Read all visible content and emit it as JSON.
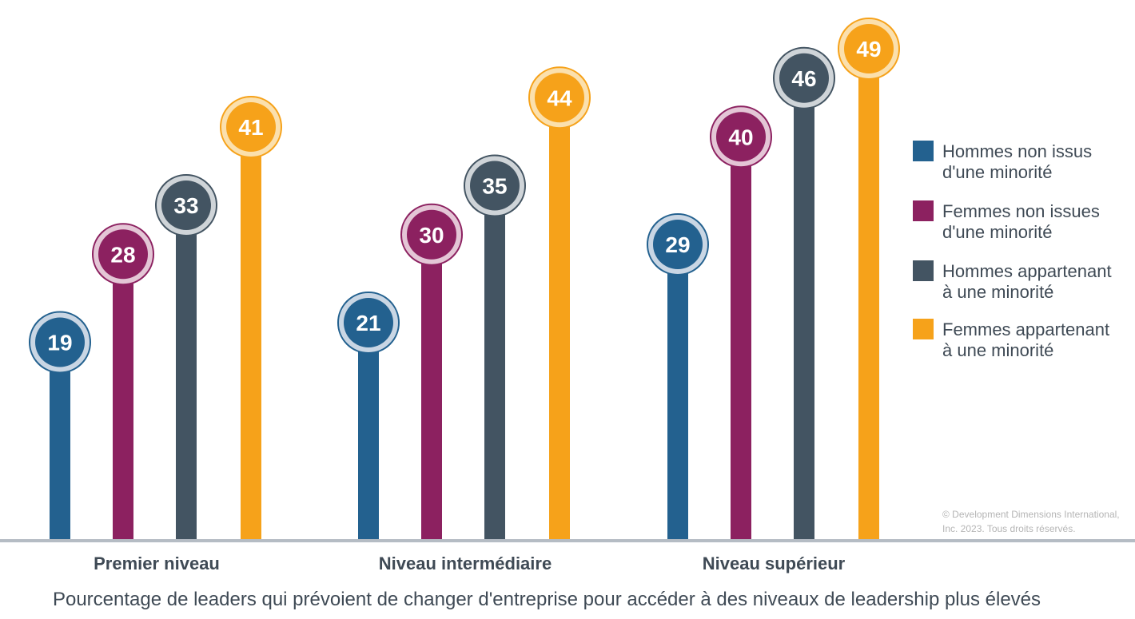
{
  "chart_data": {
    "type": "bar",
    "xlabel": "Pourcentage de leaders qui prévoient de changer d'entreprise pour accéder à des niveaux de leadership plus élevés",
    "categories": [
      "Premier niveau",
      "Niveau intermédiaire",
      "Niveau supérieur"
    ],
    "series": [
      {
        "name_lines": [
          "Hommes non issus",
          "d'une minorité"
        ],
        "color": "#23618f",
        "ring": "#c9d6e4",
        "values": [
          19,
          21,
          29
        ]
      },
      {
        "name_lines": [
          "Femmes non issues",
          "d'une minorité"
        ],
        "color": "#8c2160",
        "ring": "#e4c6d6",
        "values": [
          28,
          30,
          40
        ]
      },
      {
        "name_lines": [
          "Hommes appartenant",
          "à une minorité"
        ],
        "color": "#435462",
        "ring": "#cfd4d8",
        "values": [
          33,
          35,
          46
        ]
      },
      {
        "name_lines": [
          "Femmes appartenant",
          "à une minorité"
        ],
        "color": "#f6a21a",
        "ring": "#fbe0ad",
        "values": [
          41,
          44,
          49
        ]
      }
    ],
    "legend_position": "right",
    "grid": false,
    "axis_color": "#b5bcc4",
    "copyright_lines": [
      "© Development Dimensions International,",
      "Inc. 2023. Tous droits réservés."
    ]
  }
}
